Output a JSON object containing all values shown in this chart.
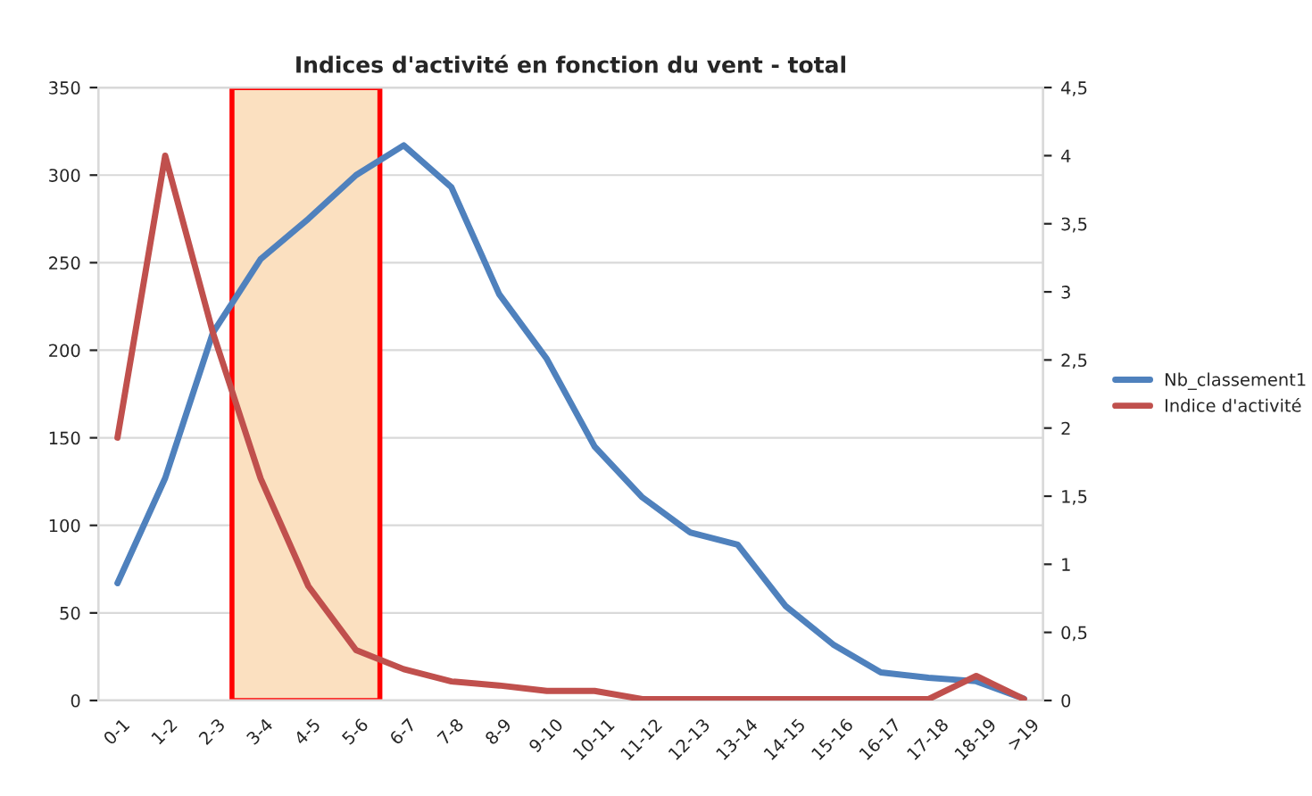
{
  "chart_data": {
    "type": "line",
    "title": "Indices d'activité en fonction du vent - total",
    "categories": [
      "0-1",
      "1-2",
      "2-3",
      "3-4",
      "4-5",
      "5-6",
      "6-7",
      "7-8",
      "8-9",
      "9-10",
      "10-11",
      "11-12",
      "12-13",
      "13-14",
      "14-15",
      "15-16",
      "16-17",
      "17-18",
      "18-19",
      ">19"
    ],
    "series": [
      {
        "name": "Nb_classement1",
        "color": "#4f81bd",
        "values": [
          67,
          127,
          210,
          252,
          275,
          300,
          317,
          293,
          232,
          195,
          145,
          116,
          96,
          89,
          54,
          32,
          16,
          13,
          11,
          1
        ]
      },
      {
        "name": "Indice d'activité",
        "color": "#c0504d",
        "axis": "y2",
        "values": [
          1.93,
          4.0,
          2.7,
          1.63,
          0.84,
          0.37,
          0.23,
          0.14,
          0.11,
          0.07,
          0.07,
          0.01,
          0.01,
          0.01,
          0.01,
          0.01,
          0.01,
          0.01,
          0.18,
          0.01
        ]
      }
    ],
    "ylim": [
      0,
      350
    ],
    "yticks": [
      0,
      50,
      100,
      150,
      200,
      250,
      300,
      350
    ],
    "y2lim": [
      0,
      4.5
    ],
    "y2ticks": [
      0,
      {
        "value": 0.5,
        "label": "0,5"
      },
      1,
      {
        "value": 1.5,
        "label": "1,5"
      },
      2,
      {
        "value": 2.5,
        "label": "2,5"
      },
      3,
      {
        "value": 3.5,
        "label": "3,5"
      },
      4,
      {
        "value": 4.5,
        "label": "4,5"
      }
    ],
    "grid": "y",
    "legend": "right"
  }
}
